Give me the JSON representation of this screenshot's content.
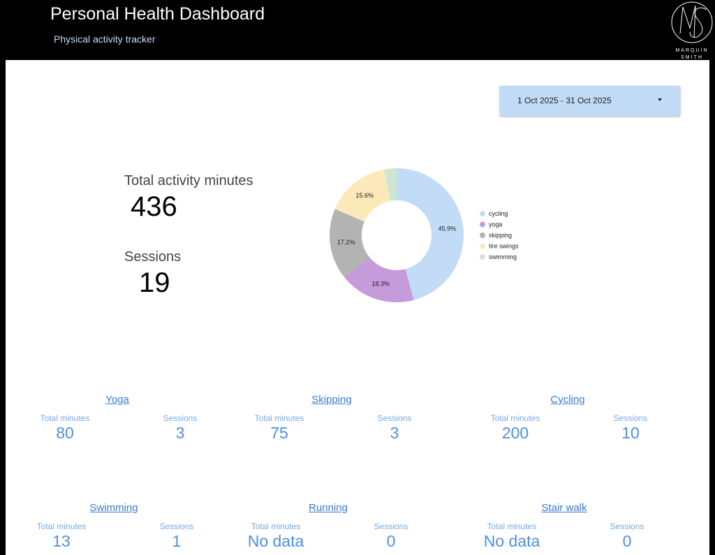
{
  "header": {
    "title": "Personal Health Dashboard",
    "subtitle": "Physical activity tracker",
    "logo_line1": "MARQUIN",
    "logo_line2": "SMITH"
  },
  "date_range": {
    "label": "1 Oct 2025 - 31 Oct 2025"
  },
  "kpis": {
    "total_minutes_label": "Total activity minutes",
    "total_minutes_value": "436",
    "sessions_label": "Sessions",
    "sessions_value": "19"
  },
  "chart_data": {
    "type": "pie",
    "donut": true,
    "legend_position": "right",
    "categories": [
      "cycling",
      "yoga",
      "skipping",
      "tire swings",
      "swimming"
    ],
    "values": [
      45.9,
      18.3,
      17.2,
      15.6,
      3.0
    ],
    "labels": [
      "45.9%",
      "18.3%",
      "17.2%",
      "15.6%",
      ""
    ],
    "colors": [
      "#c2dcf7",
      "#c59bdb",
      "#b3b3b3",
      "#fbe9b9",
      "#cfe7cf"
    ]
  },
  "activities": [
    {
      "name": "Yoga",
      "minutes_label": "Total minutes",
      "minutes": "80",
      "sessions_label": "Sessions",
      "sessions": "3"
    },
    {
      "name": "Skipping",
      "minutes_label": "Total minutes",
      "minutes": "75",
      "sessions_label": "Sessions",
      "sessions": "3"
    },
    {
      "name": "Cycling",
      "minutes_label": "Total minutes",
      "minutes": "200",
      "sessions_label": "Sessions",
      "sessions": "10"
    },
    {
      "name": "Swimming",
      "minutes_label": "Total minutes",
      "minutes": "13",
      "sessions_label": "Sessions",
      "sessions": "1"
    },
    {
      "name": "Running",
      "minutes_label": "Total minutes",
      "minutes": "No data",
      "sessions_label": "Sessions",
      "sessions": "0"
    },
    {
      "name": "Stair walk",
      "minutes_label": "Total minutes",
      "minutes": "No data",
      "sessions_label": "Sessions",
      "sessions": "0"
    }
  ]
}
